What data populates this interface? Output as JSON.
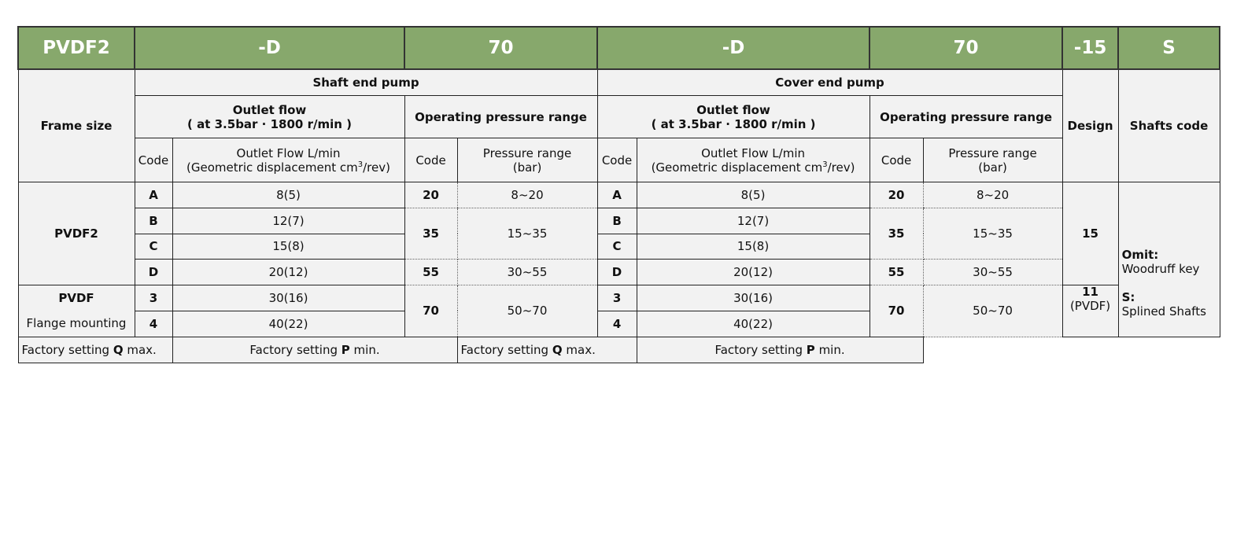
{
  "header": [
    "PVDF2",
    "-D",
    "70",
    "-D",
    "70",
    "-15",
    "S"
  ],
  "shaft_pump": "Shaft end pump",
  "cover_pump": "Cover end pump",
  "frame_size": "Frame size",
  "outlet_flow": "Outlet flow",
  "outlet_flow_cond": "( at 3.5bar · 1800 r/min )",
  "pressure_range_title": "Operating pressure range",
  "design": "Design",
  "shafts_code": "Shafts code",
  "code": "Code",
  "flow_col_1": "Outlet Flow L/min",
  "flow_col_2a": "(Geometric displacement cm",
  "flow_col_sup": "3",
  "flow_col_2b": "/rev)",
  "pr_col_1": "Pressure range",
  "pr_col_2": "(bar)",
  "frames": [
    {
      "name": "PVDF2"
    },
    {
      "name": "PVDF",
      "sub": "Flange mounting"
    }
  ],
  "flow_rows": [
    {
      "code": "A",
      "flow": "8(5)"
    },
    {
      "code": "B",
      "flow": "12(7)"
    },
    {
      "code": "C",
      "flow": "15(8)"
    },
    {
      "code": "D",
      "flow": "20(12)"
    },
    {
      "code": "3",
      "flow": "30(16)"
    },
    {
      "code": "4",
      "flow": "40(22)"
    }
  ],
  "pressure_rows": [
    {
      "code": "20",
      "range": "8~20"
    },
    {
      "code": "35",
      "range": "15~35"
    },
    {
      "code": "55",
      "range": "30~55"
    },
    {
      "code": "70",
      "range": "50~70"
    }
  ],
  "designs": [
    {
      "code": "15"
    },
    {
      "code": "11",
      "sub": "(PVDF)"
    }
  ],
  "shafts": {
    "omit_label": "Omit:",
    "omit_text": "Woodruff key",
    "s_label": "S:",
    "s_text": "Splined Shafts"
  },
  "footer": {
    "q_pre": "Factory setting ",
    "q_bold": "Q",
    "q_post": " max.",
    "p_pre": "Factory setting ",
    "p_bold": "P",
    "p_post": " min."
  }
}
